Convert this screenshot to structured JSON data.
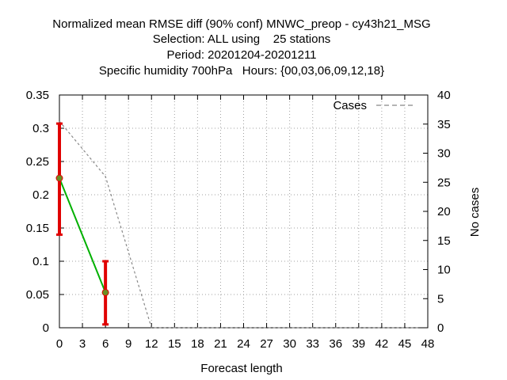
{
  "colors": {
    "background": "#ffffff",
    "axis": "#000000",
    "grid": "#a0a0a0",
    "diff_line": "#00b000",
    "diff_marker": "#6b8e23",
    "errorbar": "#e00000",
    "cases_line": "#888888"
  },
  "chart_data": {
    "type": "line",
    "title_lines": [
      "Normalized mean RMSE diff (90% conf) MNWC_preop - cy43h21_MSG",
      "Selection: ALL using    25 stations",
      "Period: 20201204-20201211",
      "Specific humidity 700hPa   Hours: {00,03,06,09,12,18}"
    ],
    "xlabel": "Forecast length",
    "ylabel": "",
    "y2label": "No cases",
    "xlim": [
      0,
      48
    ],
    "ylim": [
      0,
      0.35
    ],
    "y2lim": [
      0,
      40
    ],
    "xticks": [
      "0",
      "3",
      "6",
      "9",
      "12",
      "15",
      "18",
      "21",
      "24",
      "27",
      "30",
      "33",
      "36",
      "39",
      "42",
      "45",
      "48"
    ],
    "yticks": [
      "0",
      "0.05",
      "0.1",
      "0.15",
      "0.2",
      "0.25",
      "0.3",
      "0.35"
    ],
    "y2ticks": [
      "0",
      "5",
      "10",
      "15",
      "20",
      "25",
      "30",
      "35",
      "40"
    ],
    "grid": true,
    "legend_position": "top-right",
    "series": [
      {
        "kind": "diff",
        "x": [
          0,
          6
        ],
        "y": [
          0.225,
          0.053
        ],
        "err_low": [
          0.14,
          0.005
        ],
        "err_high": [
          0.307,
          0.1
        ]
      },
      {
        "kind": "cases",
        "name": "Cases",
        "axis": "right",
        "x": [
          0,
          6,
          12,
          15,
          18,
          21,
          24,
          27,
          30,
          33,
          36,
          39,
          42,
          45,
          47
        ],
        "y": [
          35.5,
          26,
          0,
          0,
          0,
          0,
          0,
          0,
          0,
          0,
          0,
          0,
          0,
          0,
          0
        ]
      }
    ]
  }
}
